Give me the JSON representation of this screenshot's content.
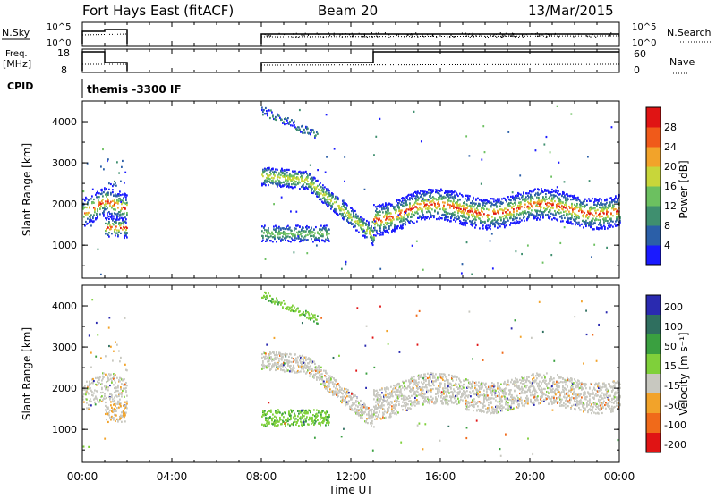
{
  "header": {
    "site": "Fort Hays East (fitACF)",
    "beam": "Beam 20",
    "date": "13/Mar/2015"
  },
  "ops": {
    "nsky_label": "N.Sky",
    "nsky_ticks": [
      "10^5",
      "10^0"
    ],
    "nsearch_label": "N.Search",
    "nsearch_ticks": [
      "10^5",
      "10^0"
    ],
    "freq_label": "Freq.",
    "freq_unit": "[MHz]",
    "freq_ticks": [
      "18",
      "8"
    ],
    "nave_label": "Nave",
    "nave_ticks": [
      "60",
      "0"
    ],
    "cpid_label": "CPID",
    "cpid_value": "themis -3300 IF"
  },
  "time_axis": {
    "label": "Time UT",
    "ticks": [
      "00:00",
      "04:00",
      "08:00",
      "12:00",
      "16:00",
      "20:00",
      "00:00"
    ]
  },
  "chart_data": [
    {
      "type": "heatmap",
      "parameter": "power",
      "ylabel": "Slant Range [km]",
      "y_ticks": [
        1000,
        2000,
        3000,
        4000
      ],
      "ylim": [
        200,
        4500
      ],
      "xlim_hours": [
        0,
        24
      ],
      "colorbar_label": "Power [dB]",
      "colorbar_ticks": [
        "4",
        "8",
        "12",
        "16",
        "20",
        "24",
        "28"
      ],
      "colors": [
        "#1a1aff",
        "#2b5fa8",
        "#3f8f6f",
        "#6cc060",
        "#c8d63a",
        "#f2a32a",
        "#f05a1a",
        "#e01414"
      ],
      "echo_regions": [
        {
          "t_start": 0.0,
          "t_end": 2.0,
          "range_center": 1800,
          "range_width": 600,
          "peak_db": 24
        },
        {
          "t_start": 8.0,
          "t_end": 13.0,
          "range_center": 2400,
          "range_width": 500,
          "peak_db": 16
        },
        {
          "t_start": 8.0,
          "t_end": 11.0,
          "range_center": 1300,
          "range_width": 300,
          "peak_db": 12
        },
        {
          "t_start": 13.0,
          "t_end": 24.0,
          "range_center": 1850,
          "range_width": 550,
          "peak_db": 28
        }
      ]
    },
    {
      "type": "heatmap",
      "parameter": "velocity",
      "ylabel": "Slant Range [km]",
      "y_ticks": [
        1000,
        2000,
        3000,
        4000
      ],
      "ylim": [
        200,
        4500
      ],
      "xlim_hours": [
        0,
        24
      ],
      "colorbar_label": "Velocity [m s⁻¹]",
      "colorbar_ticks": [
        "200",
        "100",
        "50",
        "15",
        "-15",
        "-50",
        "-100",
        "-200"
      ],
      "colors": [
        "#2a2ab0",
        "#2f6f5f",
        "#3aa040",
        "#7fd03a",
        "#c8c8c0",
        "#f2a32a",
        "#f06a1a",
        "#e01414"
      ],
      "echo_regions": [
        {
          "t_start": 0.0,
          "t_end": 2.0,
          "range_center": 1800,
          "range_width": 600,
          "typical_velocity": -15
        },
        {
          "t_start": 8.0,
          "t_end": 13.0,
          "range_center": 2400,
          "range_width": 500,
          "typical_velocity": 0
        },
        {
          "t_start": 8.0,
          "t_end": 11.0,
          "range_center": 1300,
          "range_width": 300,
          "typical_velocity": 50
        },
        {
          "t_start": 13.0,
          "t_end": 24.0,
          "range_center": 1950,
          "range_width": 650,
          "typical_velocity": 0
        }
      ]
    }
  ]
}
